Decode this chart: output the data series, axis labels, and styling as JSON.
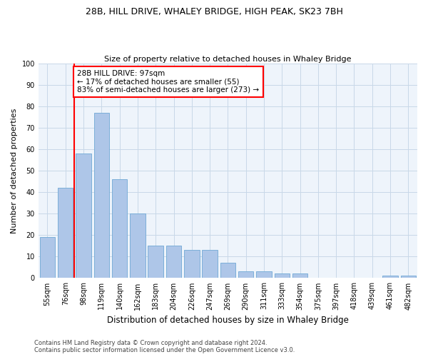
{
  "title": "28B, HILL DRIVE, WHALEY BRIDGE, HIGH PEAK, SK23 7BH",
  "subtitle": "Size of property relative to detached houses in Whaley Bridge",
  "xlabel": "Distribution of detached houses by size in Whaley Bridge",
  "ylabel": "Number of detached properties",
  "categories": [
    "55sqm",
    "76sqm",
    "98sqm",
    "119sqm",
    "140sqm",
    "162sqm",
    "183sqm",
    "204sqm",
    "226sqm",
    "247sqm",
    "269sqm",
    "290sqm",
    "311sqm",
    "333sqm",
    "354sqm",
    "375sqm",
    "397sqm",
    "418sqm",
    "439sqm",
    "461sqm",
    "482sqm"
  ],
  "values": [
    19,
    42,
    58,
    77,
    46,
    30,
    15,
    15,
    13,
    13,
    7,
    3,
    3,
    2,
    2,
    0,
    0,
    0,
    0,
    1,
    1
  ],
  "bar_color": "#aec6e8",
  "bar_edge_color": "#6fa8d5",
  "grid_color": "#c8d8e8",
  "background_color": "#eef4fb",
  "annotation_box_text": "28B HILL DRIVE: 97sqm\n← 17% of detached houses are smaller (55)\n83% of semi-detached houses are larger (273) →",
  "annotation_box_color": "red",
  "property_line_x": 1.5,
  "ylim": [
    0,
    100
  ],
  "yticks": [
    0,
    10,
    20,
    30,
    40,
    50,
    60,
    70,
    80,
    90,
    100
  ],
  "footer_line1": "Contains HM Land Registry data © Crown copyright and database right 2024.",
  "footer_line2": "Contains public sector information licensed under the Open Government Licence v3.0.",
  "title_fontsize": 9,
  "subtitle_fontsize": 8,
  "ylabel_fontsize": 8,
  "xlabel_fontsize": 8.5,
  "tick_fontsize": 7,
  "annotation_fontsize": 7.5,
  "footer_fontsize": 6
}
